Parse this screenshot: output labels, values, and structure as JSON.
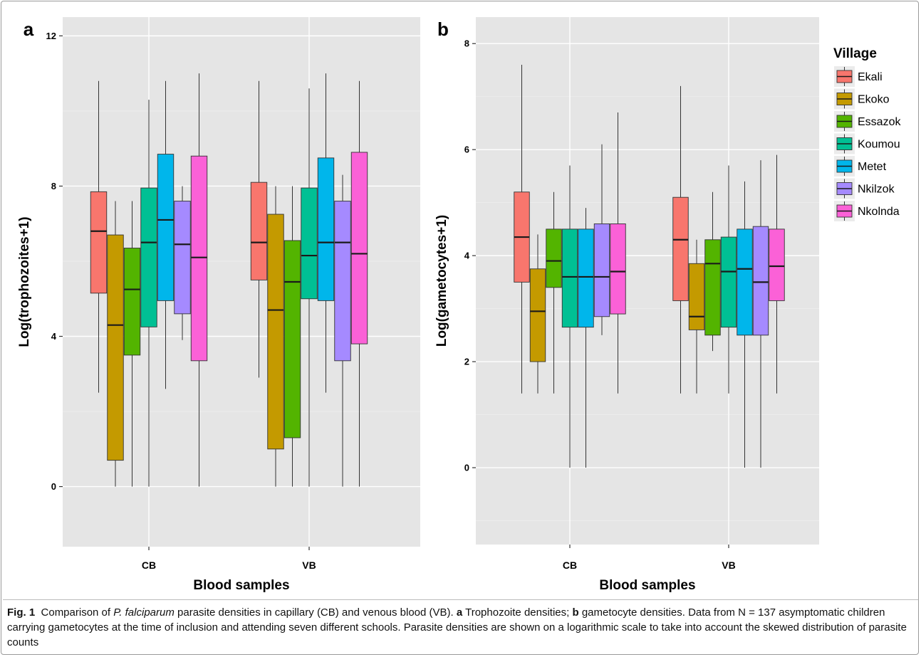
{
  "chart_data": [
    {
      "type": "box",
      "panel": "a",
      "xlabel": "Blood samples",
      "ylabel": "Log(trophozoites+1)",
      "categories": [
        "CB",
        "VB"
      ],
      "ylim": [
        -1.6,
        12.5
      ],
      "yticks": [
        0,
        4,
        8,
        12
      ],
      "series": [
        {
          "name": "Ekali",
          "color": "#F8766D",
          "boxes": [
            {
              "category": "CB",
              "min": 2.5,
              "q1": 5.15,
              "median": 6.8,
              "q3": 7.85,
              "max": 10.8
            },
            {
              "category": "VB",
              "min": 2.9,
              "q1": 5.5,
              "median": 6.5,
              "q3": 8.1,
              "max": 10.8
            }
          ]
        },
        {
          "name": "Ekoko",
          "color": "#C49A00",
          "boxes": [
            {
              "category": "CB",
              "min": 0,
              "q1": 0.7,
              "median": 4.3,
              "q3": 6.7,
              "max": 7.6
            },
            {
              "category": "VB",
              "min": 0,
              "q1": 1.0,
              "median": 4.7,
              "q3": 7.25,
              "max": 8.0
            }
          ]
        },
        {
          "name": "Essazok",
          "color": "#53B400",
          "boxes": [
            {
              "category": "CB",
              "min": 0,
              "q1": 3.5,
              "median": 5.25,
              "q3": 6.35,
              "max": 7.6
            },
            {
              "category": "VB",
              "min": 0,
              "q1": 1.3,
              "median": 5.45,
              "q3": 6.55,
              "max": 8.0
            }
          ]
        },
        {
          "name": "Koumou",
          "color": "#00C094",
          "boxes": [
            {
              "category": "CB",
              "min": 0,
              "q1": 4.25,
              "median": 6.5,
              "q3": 7.95,
              "max": 10.3
            },
            {
              "category": "VB",
              "min": 0,
              "q1": 5.0,
              "median": 6.15,
              "q3": 7.95,
              "max": 10.6
            }
          ]
        },
        {
          "name": "Metet",
          "color": "#00B6EB",
          "boxes": [
            {
              "category": "CB",
              "min": 2.6,
              "q1": 4.95,
              "median": 7.1,
              "q3": 8.85,
              "max": 10.8
            },
            {
              "category": "VB",
              "min": 2.5,
              "q1": 4.95,
              "median": 6.5,
              "q3": 8.75,
              "max": 11.0
            }
          ]
        },
        {
          "name": "Nkilzok",
          "color": "#A58AFF",
          "boxes": [
            {
              "category": "CB",
              "min": 3.9,
              "q1": 4.6,
              "median": 6.45,
              "q3": 7.6,
              "max": 8.0
            },
            {
              "category": "VB",
              "min": 0,
              "q1": 3.35,
              "median": 6.5,
              "q3": 7.6,
              "max": 8.3
            }
          ]
        },
        {
          "name": "Nkolnda",
          "color": "#FB61D7",
          "boxes": [
            {
              "category": "CB",
              "min": 0,
              "q1": 3.35,
              "median": 6.1,
              "q3": 8.8,
              "max": 11.0
            },
            {
              "category": "VB",
              "min": 0,
              "q1": 3.8,
              "median": 6.2,
              "q3": 8.9,
              "max": 10.8
            }
          ]
        }
      ]
    },
    {
      "type": "box",
      "panel": "b",
      "xlabel": "Blood samples",
      "ylabel": "Log(gametocytes+1)",
      "categories": [
        "CB",
        "VB"
      ],
      "ylim": [
        -1.45,
        8.5
      ],
      "yticks": [
        0,
        2,
        4,
        6,
        8
      ],
      "series": [
        {
          "name": "Ekali",
          "color": "#F8766D",
          "boxes": [
            {
              "category": "CB",
              "min": 1.4,
              "q1": 3.5,
              "median": 4.35,
              "q3": 5.2,
              "max": 7.6
            },
            {
              "category": "VB",
              "min": 1.4,
              "q1": 3.15,
              "median": 4.3,
              "q3": 5.1,
              "max": 7.2
            }
          ]
        },
        {
          "name": "Ekoko",
          "color": "#C49A00",
          "boxes": [
            {
              "category": "CB",
              "min": 1.4,
              "q1": 2.0,
              "median": 2.95,
              "q3": 3.75,
              "max": 4.4
            },
            {
              "category": "VB",
              "min": 1.4,
              "q1": 2.6,
              "median": 2.85,
              "q3": 3.85,
              "max": 4.3
            }
          ]
        },
        {
          "name": "Essazok",
          "color": "#53B400",
          "boxes": [
            {
              "category": "CB",
              "min": 1.4,
              "q1": 3.4,
              "median": 3.9,
              "q3": 4.5,
              "max": 5.2
            },
            {
              "category": "VB",
              "min": 2.2,
              "q1": 2.5,
              "median": 3.85,
              "q3": 4.3,
              "max": 5.2
            }
          ]
        },
        {
          "name": "Koumou",
          "color": "#00C094",
          "boxes": [
            {
              "category": "CB",
              "min": 0,
              "q1": 2.65,
              "median": 3.6,
              "q3": 4.5,
              "max": 5.7
            },
            {
              "category": "VB",
              "min": 1.4,
              "q1": 2.65,
              "median": 3.7,
              "q3": 4.35,
              "max": 5.7
            }
          ]
        },
        {
          "name": "Metet",
          "color": "#00B6EB",
          "boxes": [
            {
              "category": "CB",
              "min": 0,
              "q1": 2.65,
              "median": 3.6,
              "q3": 4.5,
              "max": 4.9
            },
            {
              "category": "VB",
              "min": 0,
              "q1": 2.5,
              "median": 3.75,
              "q3": 4.5,
              "max": 5.4
            }
          ]
        },
        {
          "name": "Nkilzok",
          "color": "#A58AFF",
          "boxes": [
            {
              "category": "CB",
              "min": 2.5,
              "q1": 2.85,
              "median": 3.6,
              "q3": 4.6,
              "max": 6.1
            },
            {
              "category": "VB",
              "min": 0,
              "q1": 2.5,
              "median": 3.5,
              "q3": 4.55,
              "max": 5.8
            }
          ]
        },
        {
          "name": "Nkolnda",
          "color": "#FB61D7",
          "boxes": [
            {
              "category": "CB",
              "min": 1.4,
              "q1": 2.9,
              "median": 3.7,
              "q3": 4.6,
              "max": 6.7
            },
            {
              "category": "VB",
              "min": 1.4,
              "q1": 3.15,
              "median": 3.8,
              "q3": 4.5,
              "max": 5.9
            }
          ]
        }
      ]
    }
  ],
  "legend": {
    "title": "Village",
    "items": [
      "Ekali",
      "Ekoko",
      "Essazok",
      "Koumou",
      "Metet",
      "Nkilzok",
      "Nkolnda"
    ],
    "placement": "right"
  },
  "panel_labels": [
    "a",
    "b"
  ],
  "theme": {
    "panel_background": "#E5E5E5",
    "grid_major": "#FFFFFF",
    "grid_minor": "#EFEFEF"
  },
  "caption": {
    "fig_label": "Fig. 1",
    "part1": "Comparison of ",
    "species": "P. falciparum",
    "part2": " parasite densities in capillary (CB) and venous blood (VB). ",
    "a_letter": "a",
    "part3": " Trophozoite densities; ",
    "b_letter": "b",
    "part4": " gametocyte densities. Data from N = 137 asymptomatic children carrying gametocytes at the time of inclusion and attending seven different schools. Parasite densities are shown on a logarithmic scale to take into account the skewed distribution of parasite counts"
  }
}
